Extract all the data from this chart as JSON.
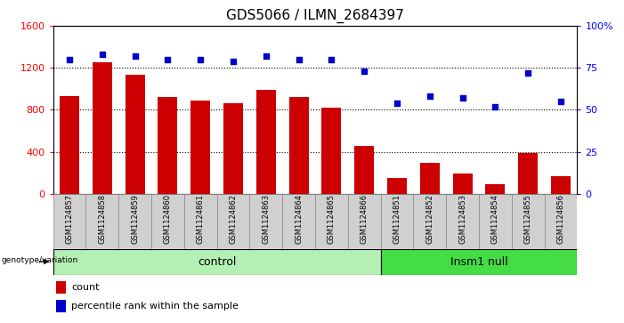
{
  "title": "GDS5066 / ILMN_2684397",
  "samples": [
    "GSM1124857",
    "GSM1124858",
    "GSM1124859",
    "GSM1124860",
    "GSM1124861",
    "GSM1124862",
    "GSM1124863",
    "GSM1124864",
    "GSM1124865",
    "GSM1124866",
    "GSM1124851",
    "GSM1124852",
    "GSM1124853",
    "GSM1124854",
    "GSM1124855",
    "GSM1124856"
  ],
  "counts": [
    930,
    1250,
    1130,
    920,
    890,
    860,
    990,
    920,
    820,
    460,
    155,
    295,
    195,
    95,
    390,
    170
  ],
  "percentiles": [
    80,
    83,
    82,
    80,
    80,
    79,
    82,
    80,
    80,
    73,
    54,
    58,
    57,
    52,
    72,
    55
  ],
  "n_control": 10,
  "n_insm1": 6,
  "bar_color": "#cc0000",
  "dot_color": "#0000cc",
  "control_bg": "#b3f0b3",
  "insm1_bg": "#44dd44",
  "sample_bg": "#d0d0d0",
  "ylim_left": [
    0,
    1600
  ],
  "ylim_right": [
    0,
    100
  ],
  "yticks_left": [
    0,
    400,
    800,
    1200,
    1600
  ],
  "yticks_right": [
    0,
    25,
    50,
    75,
    100
  ],
  "ytick_labels_right": [
    "0",
    "25",
    "50",
    "75",
    "100%"
  ]
}
